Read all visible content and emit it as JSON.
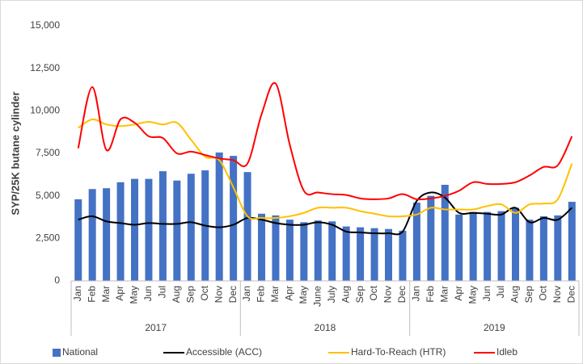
{
  "chart_data": {
    "type": "bar-line",
    "y_label": "SYP/25K butane cylinder",
    "groups": [
      {
        "name": "2017",
        "categories": [
          "Jan",
          "Feb",
          "Mar",
          "Apr",
          "May",
          "Jun",
          "Jul",
          "Aug",
          "Sep",
          "Oct",
          "Nov",
          "Dec"
        ]
      },
      {
        "name": "2018",
        "categories": [
          "Jan",
          "Feb",
          "Mar",
          "Apr",
          "May",
          "June",
          "July",
          "Aug",
          "Sep",
          "Oct",
          "Nov",
          "Dec"
        ]
      },
      {
        "name": "2019",
        "categories": [
          "Jan",
          "Feb",
          "Mar",
          "Apr",
          "May",
          "Jun",
          "Jul",
          "Aug",
          "Sep",
          "Oct",
          "Nov",
          "Dec"
        ]
      }
    ],
    "series": [
      {
        "name": "National",
        "type": "bar",
        "color": "#4472c4",
        "values": [
          4800,
          5400,
          5450,
          5800,
          6000,
          6000,
          6450,
          5900,
          6300,
          6500,
          7550,
          7350,
          6400,
          3950,
          3850,
          3600,
          3450,
          3550,
          3500,
          3200,
          3150,
          3100,
          3050,
          2950,
          4600,
          5000,
          5650,
          3900,
          4050,
          4050,
          4100,
          4300,
          3600,
          3800,
          3850,
          4650
        ]
      },
      {
        "name": "Accessible (ACC)",
        "type": "line",
        "color": "#000000",
        "values": [
          3600,
          3800,
          3500,
          3400,
          3300,
          3400,
          3350,
          3350,
          3450,
          3250,
          3150,
          3300,
          3700,
          3600,
          3400,
          3300,
          3300,
          3450,
          3300,
          2900,
          2850,
          2800,
          2800,
          2900,
          4700,
          5200,
          4900,
          4000,
          4000,
          3950,
          3900,
          4300,
          3450,
          3700,
          3600,
          4300
        ]
      },
      {
        "name": "Hard-To-Reach (HTR)",
        "type": "line",
        "color": "#ffc000",
        "values": [
          9000,
          9500,
          9200,
          9100,
          9200,
          9350,
          9200,
          9300,
          8300,
          7300,
          7100,
          5500,
          3800,
          3700,
          3700,
          3800,
          4000,
          4300,
          4300,
          4300,
          4100,
          3950,
          3800,
          3800,
          3900,
          4300,
          4200,
          4200,
          4200,
          4400,
          4500,
          4000,
          4500,
          4550,
          4800,
          6900
        ]
      },
      {
        "name": "Idleb",
        "type": "line",
        "color": "#ff0000",
        "values": [
          7800,
          11400,
          7700,
          9500,
          9300,
          8500,
          8400,
          7500,
          7600,
          7400,
          7200,
          7100,
          6900,
          9800,
          11600,
          8000,
          5300,
          5200,
          5100,
          5050,
          4850,
          4800,
          4850,
          5100,
          4800,
          4850,
          5000,
          5300,
          5800,
          5700,
          5700,
          5800,
          6200,
          6700,
          6800,
          8500
        ]
      }
    ],
    "ylim": [
      0,
      15000
    ],
    "yticks": [
      0,
      {
        "value": 2500,
        "label": "2,500"
      },
      {
        "value": 5000,
        "label": "5,000"
      },
      {
        "value": 7500,
        "label": "7,500"
      },
      {
        "value": 10000,
        "label": "10,000"
      },
      {
        "value": 12500,
        "label": "12,500"
      },
      {
        "value": 15000,
        "label": "15,000"
      }
    ],
    "legend": "bottom"
  }
}
